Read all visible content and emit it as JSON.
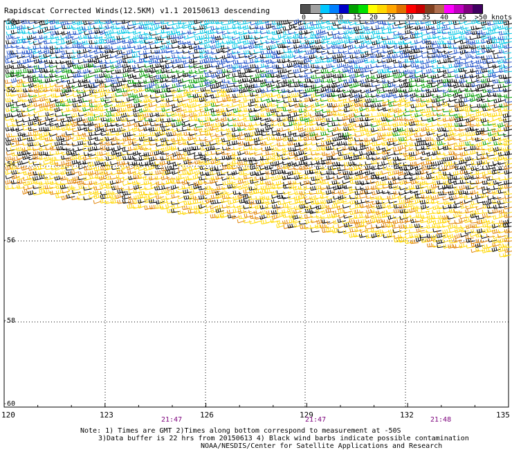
{
  "title": "Rapidscat Corrected Winds(12.5KM) v1.1 20150613 descending",
  "legend": {
    "labels": [
      "0",
      "5",
      "10",
      "15",
      "20",
      "25",
      "30",
      "35",
      "40",
      "45",
      ">50 knots"
    ],
    "colors": [
      "#505050",
      "#a0a0a0",
      "#00c8ff",
      "#0080ff",
      "#0000c8",
      "#00a000",
      "#00e000",
      "#ffff00",
      "#ffd700",
      "#ffa500",
      "#e07000",
      "#ff0000",
      "#c80000",
      "#804020",
      "#b07050",
      "#ff00ff",
      "#c000c0",
      "#800080",
      "#400060"
    ]
  },
  "axes": {
    "x_ticks": [
      "120",
      "123",
      "126",
      "129",
      "132",
      "135"
    ],
    "y_ticks": [
      "-50",
      "-52",
      "-54",
      "-56",
      "-58",
      "-60"
    ]
  },
  "times": [
    "21:47",
    "21:47",
    "21:48"
  ],
  "notes": {
    "line1": "Note: 1) Times are GMT 2)Times along bottom correspond to measurement at -50S",
    "line2": "3)Data buffer is 22 hrs from 20150613 4) Black wind barbs indicate possible contamination",
    "line3": "NOAA/NESDIS/Center for Satellite Applications and Research"
  },
  "wind_bands": [
    {
      "color": "cyan",
      "name": "cyan"
    },
    {
      "color": "blue",
      "name": "blue"
    },
    {
      "color": "green",
      "name": "green"
    },
    {
      "color": "yellow",
      "name": "yellow"
    },
    {
      "color": "orange",
      "name": "orange"
    },
    {
      "color": "contaminated",
      "name": "black"
    }
  ],
  "colors": {
    "cyan": "#00c8e6",
    "blue": "#1e50c8",
    "green": "#00a000",
    "yellow": "#ffd700",
    "orange": "#e08000",
    "contaminated": "#000000"
  }
}
